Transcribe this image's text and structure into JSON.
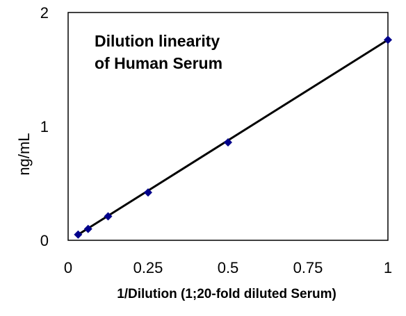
{
  "chart_data": {
    "type": "scatter",
    "title_lines": [
      "Dilution linearity",
      "of Human Serum"
    ],
    "xlabel": "1/Dilution  (1;20-fold diluted Serum)",
    "ylabel": "ng/mL",
    "xlim": [
      0,
      1
    ],
    "ylim": [
      0,
      2
    ],
    "x_ticks": [
      "0",
      "0.25",
      "0.5",
      "0.75",
      "1"
    ],
    "y_ticks": [
      "0",
      "1",
      "2"
    ],
    "grid": false,
    "legend": "none",
    "series": [
      {
        "x": [
          0.03125,
          0.0625,
          0.125,
          0.25,
          0.5,
          1.0
        ],
        "y": [
          0.05,
          0.1,
          0.21,
          0.42,
          0.86,
          1.76
        ]
      }
    ],
    "trendline": {
      "x": [
        0.03125,
        1.0
      ],
      "y": [
        0.05,
        1.76
      ]
    },
    "colors": {
      "marker": "#00008B",
      "line": "#000000",
      "axis": "#000000"
    }
  }
}
